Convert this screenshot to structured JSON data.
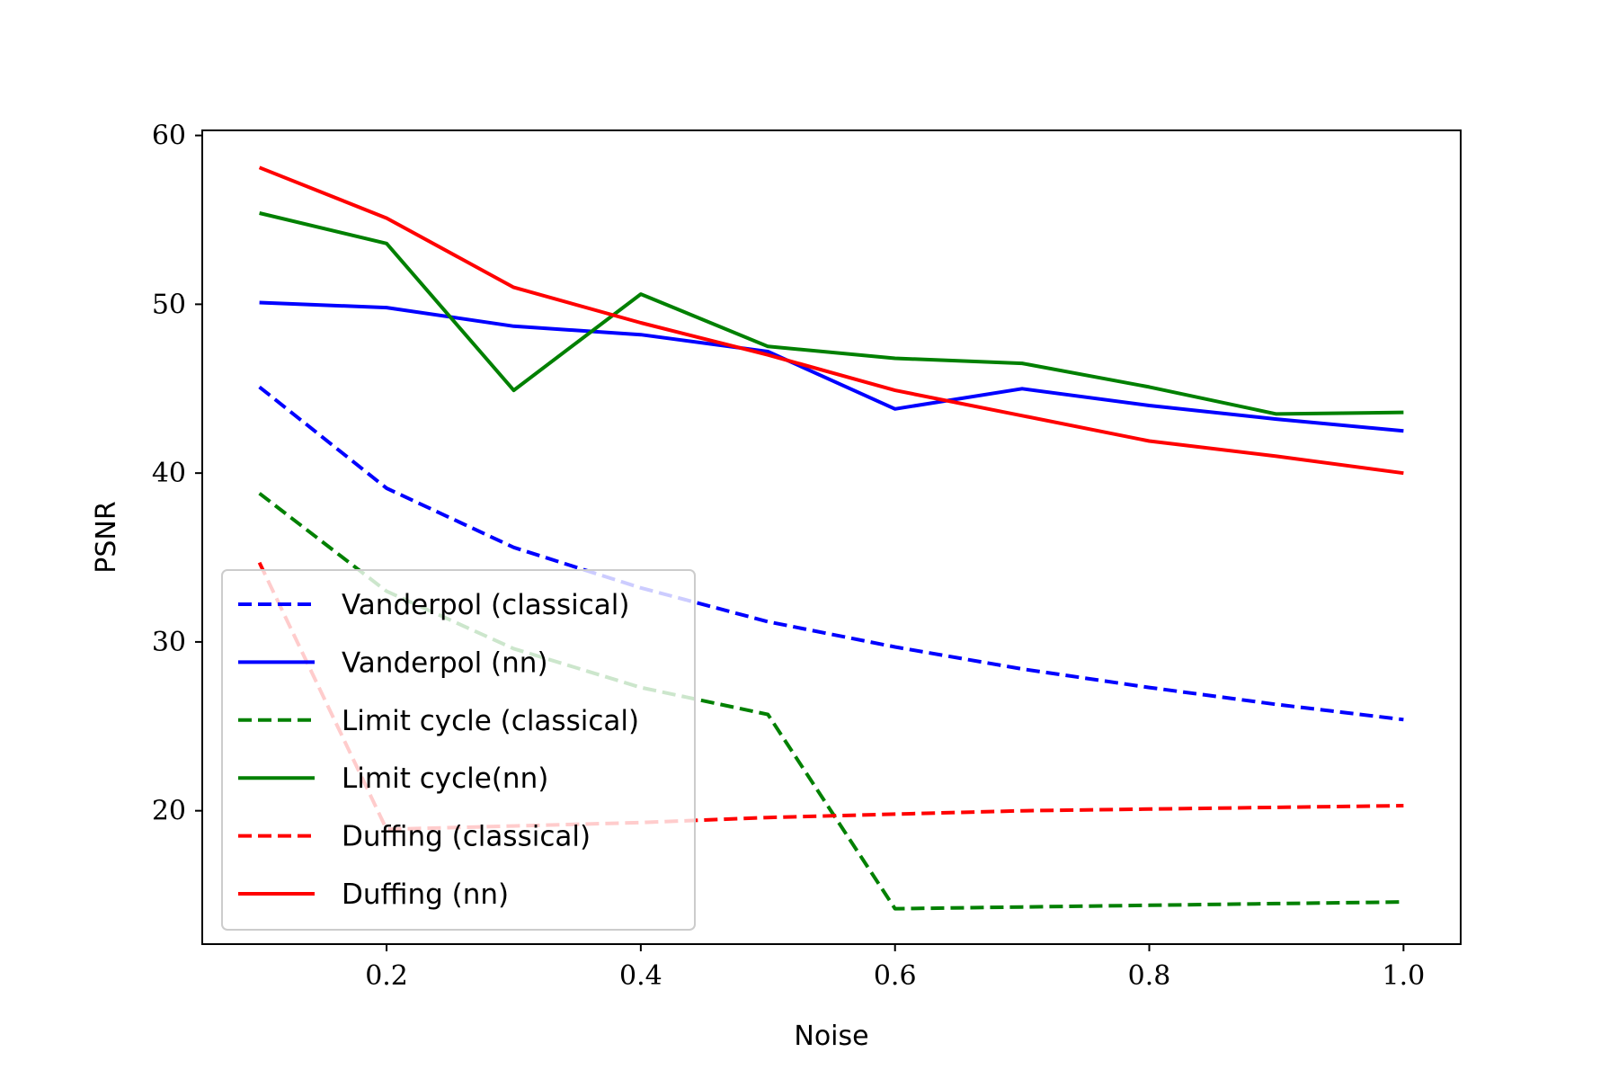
{
  "chart_data": {
    "type": "line",
    "title": "",
    "xlabel": "Noise",
    "ylabel": "PSNR",
    "xlim": [
      0.055,
      1.045
    ],
    "ylim": [
      12.1,
      60.3
    ],
    "xticks": [
      0.2,
      0.4,
      0.6,
      0.8,
      1.0
    ],
    "xtick_labels": [
      "0.2",
      "0.4",
      "0.6",
      "0.8",
      "1.0"
    ],
    "yticks": [
      20,
      30,
      40,
      50,
      60
    ],
    "ytick_labels": [
      "20",
      "30",
      "40",
      "50",
      "60"
    ],
    "grid": false,
    "legend_position": "lower-left",
    "x": [
      0.1,
      0.2,
      0.3,
      0.4,
      0.5,
      0.6,
      0.7,
      0.8,
      0.9,
      1.0
    ],
    "series": [
      {
        "name": "Vanderpol (classical)",
        "color": "#0000ff",
        "style": "dashed",
        "values": [
          45.1,
          39.1,
          35.6,
          33.2,
          31.2,
          29.7,
          28.4,
          27.3,
          26.3,
          25.4
        ]
      },
      {
        "name": "Vanderpol (nn)",
        "color": "#0000ff",
        "style": "solid",
        "values": [
          50.1,
          49.8,
          48.7,
          48.2,
          47.2,
          43.8,
          45.0,
          44.0,
          43.2,
          42.5
        ]
      },
      {
        "name": "Limit cycle (classical)",
        "color": "#008000",
        "style": "dashed",
        "values": [
          38.8,
          33.0,
          29.6,
          27.3,
          25.7,
          14.2,
          14.3,
          14.4,
          14.5,
          14.6
        ]
      },
      {
        "name": "Limit cycle(nn)",
        "color": "#008000",
        "style": "solid",
        "values": [
          55.4,
          53.6,
          44.9,
          50.6,
          47.5,
          46.8,
          46.5,
          45.1,
          43.5,
          43.6
        ]
      },
      {
        "name": "Duffing (classical)",
        "color": "#ff0000",
        "style": "dashed",
        "values": [
          34.7,
          18.9,
          19.1,
          19.3,
          19.6,
          19.8,
          20.0,
          20.1,
          20.2,
          20.3
        ]
      },
      {
        "name": "Duffing (nn)",
        "color": "#ff0000",
        "style": "solid",
        "values": [
          58.1,
          55.1,
          51.0,
          48.9,
          47.0,
          44.9,
          43.4,
          41.9,
          41.0,
          40.0
        ]
      }
    ]
  }
}
